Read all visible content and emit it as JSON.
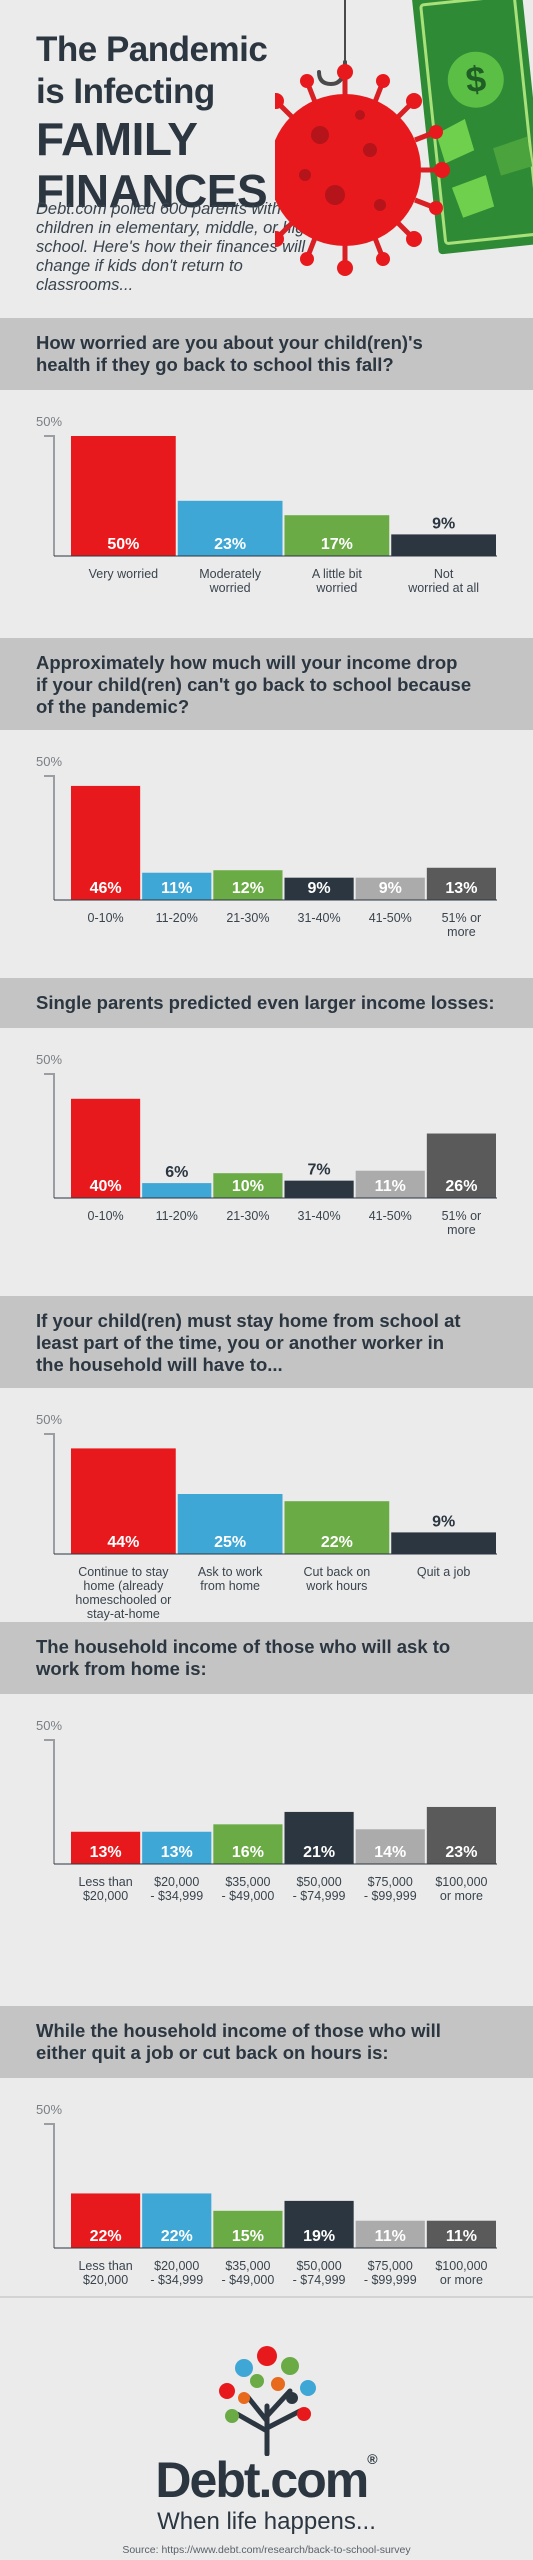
{
  "header": {
    "title_lines": [
      "The Pandemic",
      "is Infecting",
      "FAMILY",
      "FINANCES"
    ],
    "intro": "Debt.com polled 600 parents with children in elementary, middle, or high school. Here's how their finances will change if kids don't return to classrooms..."
  },
  "sections": [
    {
      "question": [
        "How worried are you about your child(ren)'s",
        "health if they go back to school this fall?"
      ]
    },
    {
      "question": [
        "Approximately how much will your income drop",
        "if your child(ren) can't go back to school because",
        "of the pandemic?"
      ]
    },
    {
      "question": [
        "Single parents predicted even larger income losses:"
      ]
    },
    {
      "question": [
        "If your child(ren) must stay home from school at",
        "least part of the time, you or another worker in",
        "the household will have to..."
      ]
    },
    {
      "question": [
        "The household income of those who will ask to",
        "work from home is:"
      ]
    },
    {
      "question": [
        "While the household income of those who will",
        "either quit a job or cut back on hours is:"
      ]
    }
  ],
  "chart_data": [
    {
      "type": "bar",
      "axis_max_label": "50%",
      "ylim": [
        0,
        50
      ],
      "categories": [
        "Very worried",
        "Moderately\nworried",
        "A little bit\nworried",
        "Not\nworried at all"
      ],
      "values": [
        50,
        23,
        17,
        9
      ],
      "colors": [
        "#e8191c",
        "#3ea7d6",
        "#6aab45",
        "#2b3640"
      ],
      "value_labels": [
        "50%",
        "23%",
        "17%",
        "9%"
      ]
    },
    {
      "type": "bar",
      "axis_max_label": "50%",
      "ylim": [
        0,
        50
      ],
      "categories": [
        "0-10%",
        "11-20%",
        "21-30%",
        "31-40%",
        "41-50%",
        "51% or\nmore"
      ],
      "values": [
        46,
        11,
        12,
        9,
        9,
        13
      ],
      "colors": [
        "#e8191c",
        "#3ea7d6",
        "#6aab45",
        "#2b3640",
        "#ababab",
        "#5a5a5a"
      ],
      "value_labels": [
        "46%",
        "11%",
        "12%",
        "9%",
        "9%",
        "13%"
      ]
    },
    {
      "type": "bar",
      "axis_max_label": "50%",
      "ylim": [
        0,
        50
      ],
      "categories": [
        "0-10%",
        "11-20%",
        "21-30%",
        "31-40%",
        "41-50%",
        "51% or\nmore"
      ],
      "values": [
        40,
        6,
        10,
        7,
        11,
        26
      ],
      "colors": [
        "#e8191c",
        "#3ea7d6",
        "#6aab45",
        "#2b3640",
        "#ababab",
        "#5a5a5a"
      ],
      "value_labels": [
        "40%",
        "6%",
        "10%",
        "7%",
        "11%",
        "26%"
      ]
    },
    {
      "type": "bar",
      "axis_max_label": "50%",
      "ylim": [
        0,
        50
      ],
      "categories": [
        "Continue to stay\nhome (already\nhomeschooled or\nstay-at-home\nparent)",
        "Ask to work\nfrom home",
        "Cut back on\nwork hours",
        "Quit a job"
      ],
      "values": [
        44,
        25,
        22,
        9
      ],
      "colors": [
        "#e8191c",
        "#3ea7d6",
        "#6aab45",
        "#2b3640"
      ],
      "value_labels": [
        "44%",
        "25%",
        "22%",
        "9%"
      ]
    },
    {
      "type": "bar",
      "axis_max_label": "50%",
      "ylim": [
        0,
        50
      ],
      "categories": [
        "Less than\n$20,000",
        "$20,000\n- $34,999",
        "$35,000\n- $49,000",
        "$50,000\n- $74,999",
        "$75,000\n- $99,999",
        "$100,000\nor more"
      ],
      "values": [
        13,
        13,
        16,
        21,
        14,
        23
      ],
      "colors": [
        "#e8191c",
        "#3ea7d6",
        "#6aab45",
        "#2b3640",
        "#ababab",
        "#5a5a5a"
      ],
      "value_labels": [
        "13%",
        "13%",
        "16%",
        "21%",
        "14%",
        "23%"
      ]
    },
    {
      "type": "bar",
      "axis_max_label": "50%",
      "ylim": [
        0,
        50
      ],
      "categories": [
        "Less than\n$20,000",
        "$20,000\n- $34,999",
        "$35,000\n- $49,000",
        "$50,000\n- $74,999",
        "$75,000\n- $99,999",
        "$100,000\nor more"
      ],
      "values": [
        22,
        22,
        15,
        19,
        11,
        11
      ],
      "colors": [
        "#e8191c",
        "#3ea7d6",
        "#6aab45",
        "#2b3640",
        "#ababab",
        "#5a5a5a"
      ],
      "value_labels": [
        "22%",
        "22%",
        "15%",
        "19%",
        "11%",
        "11%"
      ]
    }
  ],
  "footer": {
    "brand": "Debt.com",
    "brand_mark": "®",
    "tagline": "When life happens...",
    "source": "Source: https://www.debt.com/research/back-to-school-survey"
  }
}
